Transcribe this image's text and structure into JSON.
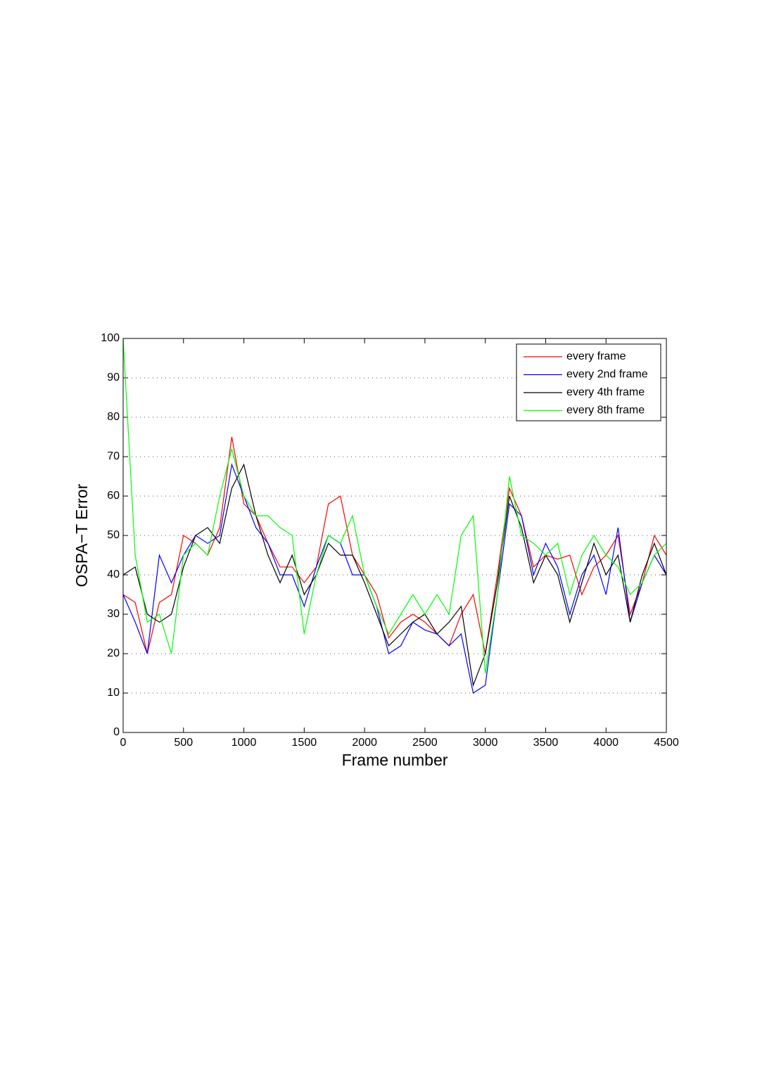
{
  "chart_data": {
    "type": "line",
    "x_label": "Frame number",
    "y_label": "OSPA−T Error",
    "x": [
      0,
      100,
      200,
      300,
      400,
      500,
      600,
      700,
      800,
      900,
      1000,
      1100,
      1200,
      1300,
      1400,
      1500,
      1600,
      1700,
      1800,
      1900,
      2000,
      2100,
      2200,
      2300,
      2400,
      2500,
      2600,
      2700,
      2800,
      2900,
      3000,
      3100,
      3200,
      3300,
      3400,
      3500,
      3600,
      3700,
      3800,
      3900,
      4000,
      4100,
      4200,
      4300,
      4400,
      4500
    ],
    "series": [
      {
        "name": "every frame",
        "color": "#ff0000",
        "values": [
          35,
          33,
          20,
          33,
          35,
          50,
          48,
          45,
          52,
          75,
          58,
          55,
          48,
          42,
          42,
          38,
          42,
          58,
          60,
          45,
          40,
          35,
          24,
          28,
          30,
          28,
          25,
          22,
          30,
          35,
          20,
          40,
          62,
          55,
          42,
          45,
          44,
          45,
          35,
          42,
          45,
          50,
          30,
          38,
          50,
          45
        ]
      },
      {
        "name": "every 2nd frame",
        "color": "#0000ff",
        "values": [
          35,
          28,
          20,
          45,
          38,
          45,
          50,
          48,
          50,
          68,
          60,
          52,
          48,
          40,
          40,
          32,
          42,
          50,
          48,
          40,
          40,
          32,
          20,
          22,
          28,
          26,
          25,
          22,
          25,
          10,
          12,
          35,
          58,
          55,
          40,
          48,
          42,
          30,
          40,
          45,
          35,
          52,
          28,
          38,
          45,
          40
        ]
      },
      {
        "name": "every 4th frame",
        "color": "#000000",
        "values": [
          40,
          42,
          30,
          28,
          30,
          42,
          50,
          52,
          48,
          62,
          68,
          55,
          45,
          38,
          45,
          35,
          40,
          48,
          45,
          45,
          38,
          30,
          22,
          25,
          28,
          30,
          25,
          28,
          32,
          12,
          20,
          38,
          60,
          52,
          38,
          45,
          40,
          28,
          38,
          48,
          40,
          45,
          28,
          40,
          48,
          40
        ]
      },
      {
        "name": "every 8th frame",
        "color": "#00ff00",
        "values": [
          100,
          45,
          28,
          30,
          20,
          45,
          48,
          45,
          60,
          72,
          60,
          55,
          55,
          52,
          50,
          25,
          40,
          50,
          48,
          55,
          40,
          32,
          25,
          30,
          35,
          30,
          35,
          30,
          50,
          55,
          15,
          35,
          65,
          50,
          48,
          45,
          48,
          35,
          45,
          50,
          45,
          42,
          35,
          38,
          45,
          48
        ]
      }
    ],
    "xlim": [
      0,
      4500
    ],
    "xticks": [
      0,
      500,
      1000,
      1500,
      2000,
      2500,
      3000,
      3500,
      4000,
      4500
    ],
    "ylim": [
      0,
      100
    ],
    "yticks": [
      0,
      10,
      20,
      30,
      40,
      50,
      60,
      70,
      80,
      90,
      100
    ],
    "grid": true,
    "legend": "northeast"
  }
}
